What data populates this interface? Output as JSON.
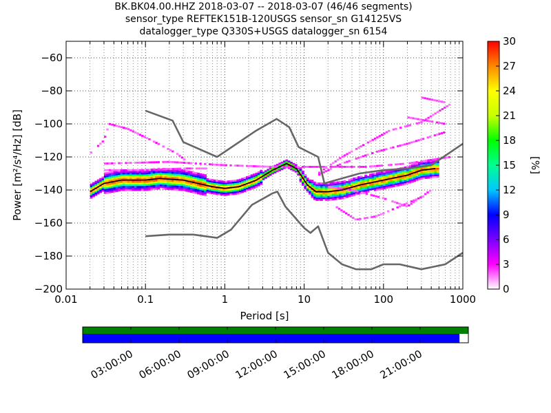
{
  "title_lines": [
    "BK.BK04.00.HHZ   2018-03-07 -- 2018-03-07  (46/46 segments)",
    "sensor_type REFTEK151B-120USGS sensor_sn G14125VS",
    "datalogger_type Q330S+USGS datalogger_sn 6154"
  ],
  "chart_data": {
    "type": "heatmap",
    "xlabel": "Period [s]",
    "ylabel": "Power [m²/s⁴/Hz] [dB]",
    "xscale": "log",
    "xlim": [
      0.01,
      1000
    ],
    "ylim": [
      -200,
      -50
    ],
    "x_ticks": [
      "0.01",
      "0.1",
      "1",
      "10",
      "100",
      "1000"
    ],
    "y_ticks": [
      "−200",
      "−180",
      "−160",
      "−140",
      "−120",
      "−100",
      "−80",
      "−60"
    ],
    "grid": true,
    "colorbar": {
      "label": "[%]",
      "range": [
        0,
        30
      ],
      "ticks": [
        "0",
        "3",
        "6",
        "9",
        "12",
        "15",
        "18",
        "21",
        "24",
        "27",
        "30"
      ],
      "colors": [
        "#ffffff",
        "#ff00ff",
        "#7a00ff",
        "#0000ff",
        "#00c8ff",
        "#00ff90",
        "#00ff00",
        "#c8ff00",
        "#ffff00",
        "#ff8800",
        "#ff0000"
      ]
    },
    "series": [
      {
        "name": "",
        "color": "#666666",
        "points": [
          [
            0.1,
            -92
          ],
          [
            0.22,
            -98
          ],
          [
            0.3,
            -111
          ],
          [
            0.8,
            -120
          ],
          [
            2.5,
            -104
          ],
          [
            4.5,
            -97
          ],
          [
            6.5,
            -102
          ],
          [
            8.5,
            -114
          ],
          [
            15,
            -120
          ],
          [
            18,
            -136
          ],
          [
            50,
            -130
          ],
          [
            100,
            -128
          ],
          [
            200,
            -127
          ],
          [
            400,
            -125
          ],
          [
            1000,
            -112
          ]
        ]
      },
      {
        "name": "",
        "color": "#666666",
        "points": [
          [
            0.1,
            -168
          ],
          [
            0.2,
            -167
          ],
          [
            0.4,
            -167
          ],
          [
            0.8,
            -169
          ],
          [
            1.2,
            -164
          ],
          [
            2.2,
            -149
          ],
          [
            4,
            -142
          ],
          [
            4.6,
            -141
          ],
          [
            5.8,
            -150
          ],
          [
            10,
            -163
          ],
          [
            12,
            -166
          ],
          [
            15,
            -162
          ],
          [
            20,
            -178
          ],
          [
            30,
            -185
          ],
          [
            45,
            -188
          ],
          [
            70,
            -188
          ],
          [
            100,
            -185
          ],
          [
            160,
            -185
          ],
          [
            300,
            -188
          ],
          [
            600,
            -185
          ],
          [
            1000,
            -178
          ]
        ]
      },
      {
        "name": "",
        "color": "#000000",
        "points": [
          [
            0.02,
            -141
          ],
          [
            0.03,
            -136
          ],
          [
            0.05,
            -134
          ],
          [
            0.1,
            -134
          ],
          [
            0.15,
            -133
          ],
          [
            0.3,
            -134
          ],
          [
            0.7,
            -138
          ],
          [
            1,
            -139
          ],
          [
            1.5,
            -138
          ],
          [
            2.5,
            -134
          ],
          [
            4,
            -128
          ],
          [
            6,
            -124
          ],
          [
            8,
            -127
          ],
          [
            11,
            -137
          ],
          [
            14,
            -141
          ],
          [
            20,
            -141
          ],
          [
            30,
            -140
          ],
          [
            50,
            -137
          ],
          [
            100,
            -134
          ],
          [
            200,
            -131
          ],
          [
            300,
            -128
          ],
          [
            450,
            -127
          ]
        ]
      }
    ]
  },
  "timeline": {
    "ticks": [
      "03:00:00",
      "06:00:00",
      "09:00:00",
      "12:00:00",
      "15:00:00",
      "18:00:00",
      "21:00:00"
    ],
    "top_bar_color": "#008000",
    "bottom_bar_color": "#0000ff",
    "coverage_fraction": 0.977
  }
}
